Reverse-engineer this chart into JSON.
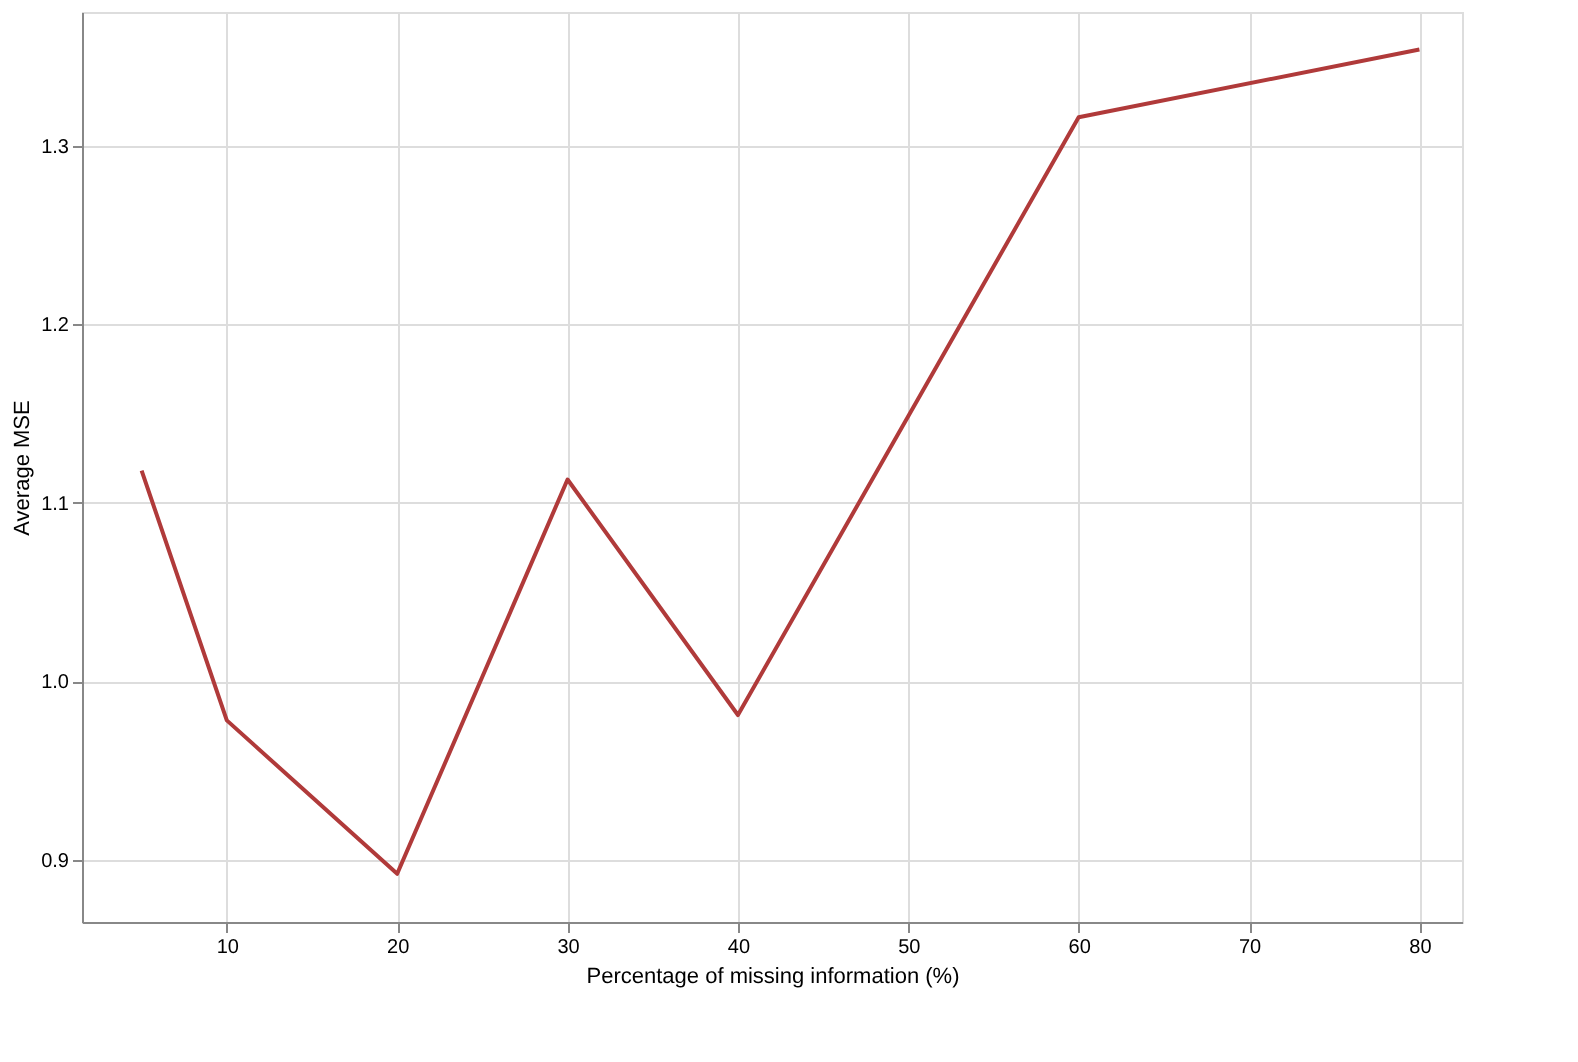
{
  "chart_data": {
    "type": "line",
    "xlabel": "Percentage of missing information (%)",
    "ylabel": "Average MSE",
    "x": [
      5,
      10,
      20,
      30,
      40,
      60,
      80
    ],
    "series": [
      {
        "color": "#b03a3a",
        "values": [
          1.118,
          0.978,
          0.892,
          1.113,
          0.981,
          1.316,
          1.354
        ]
      }
    ],
    "xlim": [
      1.5,
      82.5
    ],
    "xticks": [
      10,
      20,
      30,
      40,
      50,
      60,
      70,
      80
    ],
    "ylim": [
      0.865,
      1.375
    ],
    "yticks": [
      0.9,
      {
        "value": 1.0,
        "label": "1.0"
      },
      1.1,
      1.2,
      1.3
    ],
    "grid": true,
    "marker": "none",
    "line_style": "solid"
  }
}
